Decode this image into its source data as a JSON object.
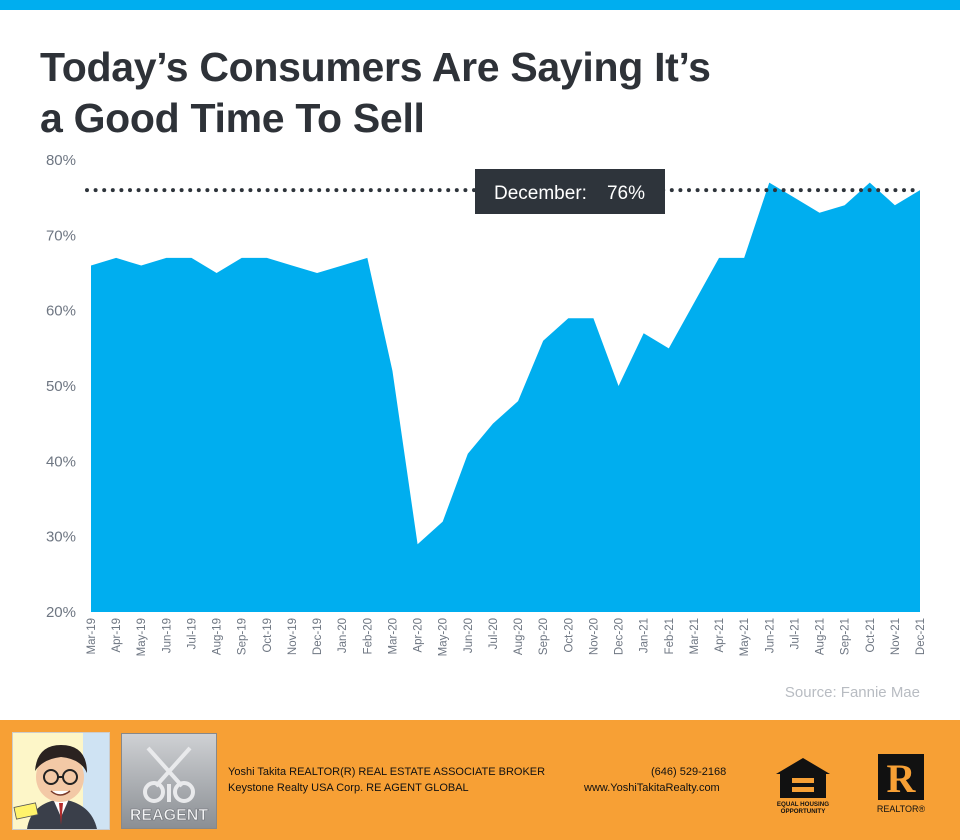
{
  "header": {
    "title_line1": "Today’s Consumers Are Saying It’s",
    "title_line2": "a Good Time To Sell"
  },
  "colors": {
    "accent": "#00aeef",
    "title": "#2e3238",
    "axis_text": "#6e7682",
    "callout_bg": "#2e343b",
    "footer_bg": "#f7a035"
  },
  "chart_data": {
    "type": "area",
    "categories": [
      "Mar-19",
      "Apr-19",
      "May-19",
      "Jun-19",
      "Jul-19",
      "Aug-19",
      "Sep-19",
      "Oct-19",
      "Nov-19",
      "Dec-19",
      "Jan-20",
      "Feb-20",
      "Mar-20",
      "Apr-20",
      "May-20",
      "Jun-20",
      "Jul-20",
      "Aug-20",
      "Sep-20",
      "Oct-20",
      "Nov-20",
      "Dec-20",
      "Jan-21",
      "Feb-21",
      "Mar-21",
      "Apr-21",
      "May-21",
      "Jun-21",
      "Jul-21",
      "Aug-21",
      "Sep-21",
      "Oct-21",
      "Nov-21",
      "Dec-21"
    ],
    "values": [
      66,
      67,
      66,
      67,
      67,
      65,
      67,
      67,
      66,
      65,
      66,
      67,
      52,
      29,
      32,
      41,
      45,
      48,
      56,
      59,
      59,
      50,
      57,
      55,
      61,
      67,
      67,
      77,
      75,
      73,
      74,
      77,
      74,
      76
    ],
    "ylim": [
      20,
      80
    ],
    "yticks": [
      "20%",
      "30%",
      "40%",
      "50%",
      "60%",
      "70%",
      "80%"
    ],
    "reference_line": {
      "value": 76,
      "style": "dotted"
    },
    "callout": {
      "label": "December:",
      "value": "76%"
    },
    "source": "Source: Fannie Mae",
    "grid": false,
    "legend": "none"
  },
  "footer": {
    "agent_line": "Yoshi Takita REALTOR(R) REAL ESTATE ASSOCIATE BROKER",
    "company_line": "Keystone Realty USA Corp.  RE AGENT GLOBAL",
    "phone": "(646) 529-2168",
    "website": "www.YoshiTakitaRealty.com",
    "reagent_logo_text": "REAGENT",
    "eho_text_line1": "EQUAL HOUSING",
    "eho_text_line2": "OPPORTUNITY",
    "realtor_logo_letter": "R",
    "realtor_logo_text": "REALTOR®"
  }
}
